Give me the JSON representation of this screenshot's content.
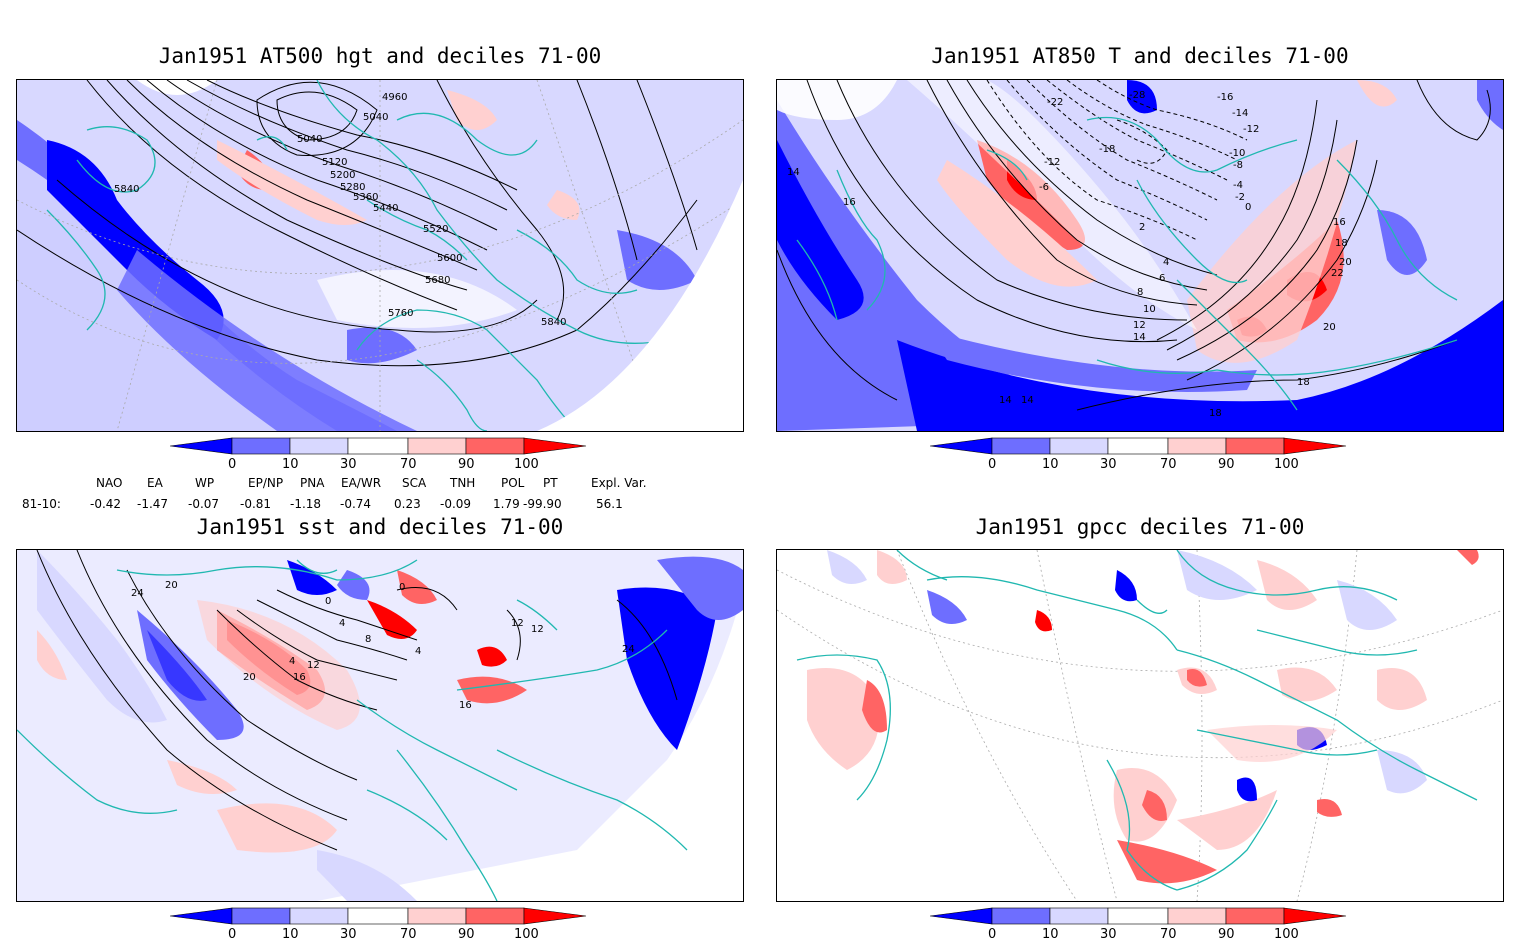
{
  "panels": [
    {
      "id": "p1",
      "title": "Jan1951 AT500 hgt and deciles 71-00",
      "contour_labels": [
        "4960",
        "5040",
        "5040",
        "5120",
        "5200",
        "5280",
        "5360",
        "5440",
        "5520",
        "5600",
        "5680",
        "5760",
        "5840",
        "5840"
      ]
    },
    {
      "id": "p2",
      "title": "Jan1951 AT850 T and deciles 71-00",
      "contour_labels": [
        "-22",
        "-28",
        "-16",
        "-14",
        "-12",
        "-12",
        "-10",
        "-8",
        "-6",
        "-4",
        "-2",
        "0",
        "2",
        "4",
        "6",
        "8",
        "10",
        "12",
        "14",
        "16",
        "18",
        "20",
        "22",
        "14",
        "16",
        "14",
        "14",
        "20",
        "18",
        "18",
        "-18"
      ]
    },
    {
      "id": "p3",
      "title": "Jan1951 sst and deciles 71-00",
      "contour_labels": [
        "24",
        "20",
        "0",
        "0",
        "4",
        "8",
        "4",
        "12",
        "16",
        "20",
        "12",
        "16",
        "24",
        "12",
        "4"
      ]
    },
    {
      "id": "p4",
      "title": "Jan1951 gpcc deciles 71-00",
      "contour_labels": []
    }
  ],
  "colorbar": {
    "ticks": [
      "0",
      "10",
      "30",
      "70",
      "90",
      "100"
    ],
    "colors": {
      "dark_blue": "#0000ff",
      "mid_blue": "#6e6eff",
      "light_blue": "#d8d8ff",
      "white": "#ffffff",
      "light_red": "#ffd0d0",
      "mid_red": "#ff6464",
      "dark_red": "#ff0000"
    }
  },
  "indices": {
    "row_label": "81-10:",
    "headers": [
      "NAO",
      "EA",
      "WP",
      "EP/NP",
      "PNA",
      "EA/WR",
      "SCA",
      "TNH",
      "POL",
      "PT",
      "Expl. Var."
    ],
    "values": [
      "-0.42",
      "-1.47",
      "-0.07",
      "-0.81",
      "-1.18",
      "-0.74",
      "0.23",
      "-0.09",
      "1.79",
      "-99.90",
      "56.1"
    ]
  },
  "colors": {
    "coast": "#20b8b0",
    "contour": "#000000",
    "grid": "#aaaaaa"
  }
}
